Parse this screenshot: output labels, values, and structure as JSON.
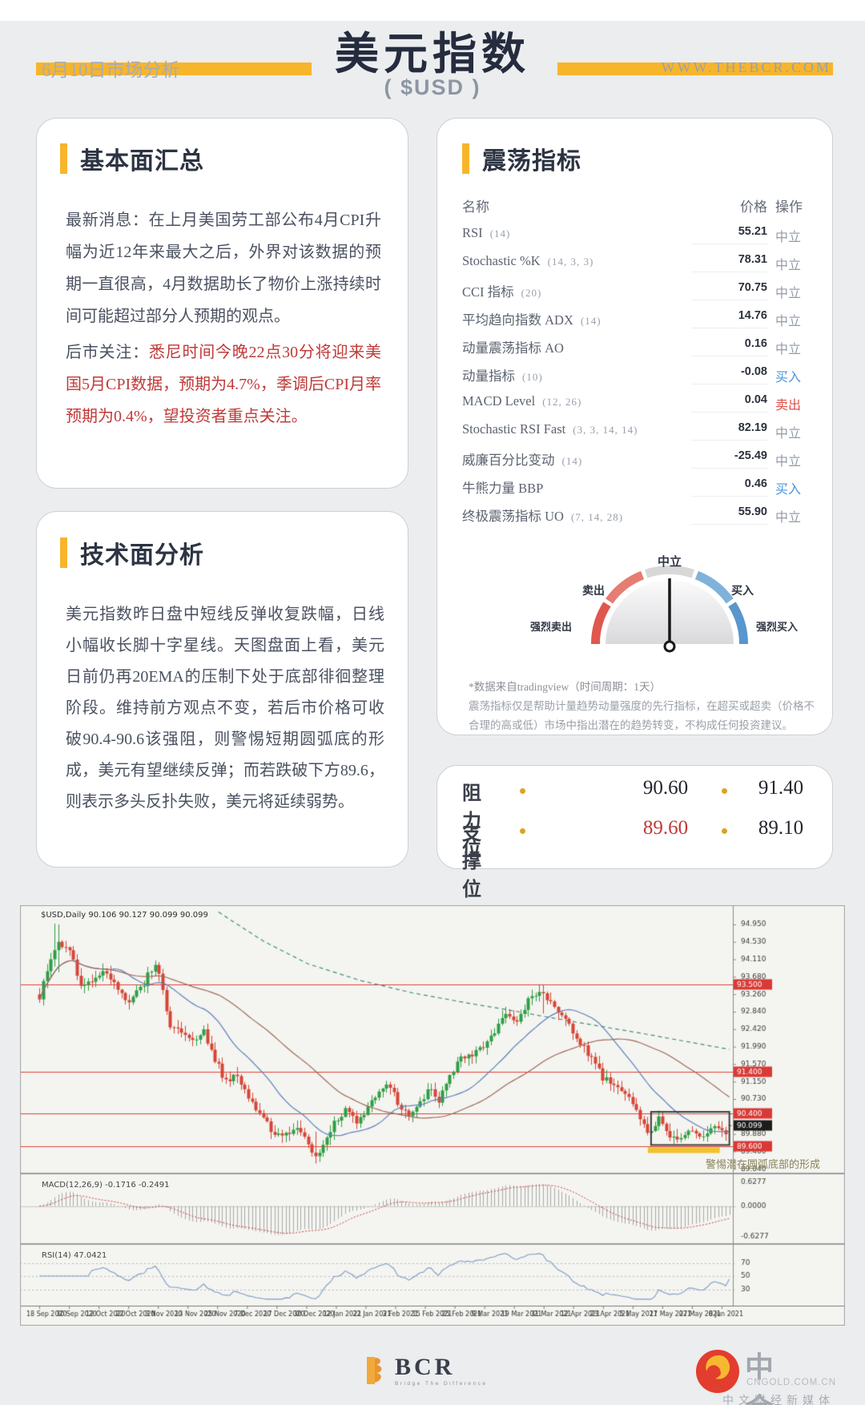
{
  "header": {
    "date_label": "6月10日市场分析",
    "title": "美元指数",
    "subtitle": "( $USD )",
    "website": "WWW.THEBCR.COM",
    "accent_color": "#F7B52C"
  },
  "fundamental_card": {
    "title": "基本面汇总",
    "latest_label": "最新消息：",
    "latest_text": "在上月美国劳工部公布4月CPI升幅为近12年来最大之后，外界对该数据的预期一直很高，4月数据助长了物价上涨持续时间可能超过部分人预期的观点。",
    "watch_label": "后市关注：",
    "watch_text": "悉尼时间今晚22点30分将迎来美国5月CPI数据，预期为4.7%，季调后CPI月率预期为0.4%，望投资者重点关注。"
  },
  "oscillator_card": {
    "title": "震荡指标",
    "columns": {
      "name": "名称",
      "price": "价格",
      "action": "操作"
    },
    "rows": [
      {
        "name": "RSI",
        "param": "(14)",
        "price": "55.21",
        "action": "中立",
        "action_type": "neutral"
      },
      {
        "name": "Stochastic %K",
        "param": "(14, 3, 3)",
        "price": "78.31",
        "action": "中立",
        "action_type": "neutral"
      },
      {
        "name": "CCI 指标",
        "param": "(20)",
        "price": "70.75",
        "action": "中立",
        "action_type": "neutral"
      },
      {
        "name": "平均趋向指数 ADX",
        "param": "(14)",
        "price": "14.76",
        "action": "中立",
        "action_type": "neutral"
      },
      {
        "name": "动量震荡指标 AO",
        "param": "",
        "price": "0.16",
        "action": "中立",
        "action_type": "neutral"
      },
      {
        "name": "动量指标",
        "param": "(10)",
        "price": "-0.08",
        "action": "买入",
        "action_type": "buy"
      },
      {
        "name": "MACD Level",
        "param": "(12, 26)",
        "price": "0.04",
        "action": "卖出",
        "action_type": "sell"
      },
      {
        "name": "Stochastic RSI Fast",
        "param": "(3, 3, 14, 14)",
        "price": "82.19",
        "action": "中立",
        "action_type": "neutral"
      },
      {
        "name": "威廉百分比变动",
        "param": "(14)",
        "price": "-25.49",
        "action": "中立",
        "action_type": "neutral"
      },
      {
        "name": "牛熊力量 BBP",
        "param": "",
        "price": "0.46",
        "action": "买入",
        "action_type": "buy"
      },
      {
        "name": "终极震荡指标 UO",
        "param": "(7, 14, 28)",
        "price": "55.90",
        "action": "中立",
        "action_type": "neutral"
      }
    ],
    "gauge": {
      "labels": {
        "neutral": "中立",
        "sell": "卖出",
        "buy": "买入",
        "strong_sell": "强烈卖出",
        "strong_buy": "强烈买入"
      },
      "colors": {
        "strong_sell": "#e0574e",
        "sell": "#e57d72",
        "neutral": "#d8d8d8",
        "buy": "#7fb2da",
        "strong_buy": "#5996cc"
      },
      "needle_position": "neutral"
    },
    "footnote1": "*数据来自tradingview（时间周期：1天）",
    "footnote2": "震荡指标仅是帮助计量趋势动量强度的先行指标，在超买或超卖（价格不合理的高或低）市场中指出潜在的趋势转变，不构成任何投资建议。"
  },
  "technical_card": {
    "title": "技术面分析",
    "text": "美元指数昨日盘中短线反弹收复跌幅，日线小幅收长脚十字星线。天图盘面上看，美元日前仍再20EMA的压制下处于底部徘徊整理阶段。维持前方观点不变，若后市价格可收破90.4-90.6该强阻，则警惕短期圆弧底的形成，美元有望继续反弹；而若跌破下方89.6，则表示多头反扑失败，美元将延续弱势。"
  },
  "levels_card": {
    "resistance_label": "阻力位",
    "resistance": [
      "90.60",
      "91.40"
    ],
    "support_label": "支撑位",
    "support": [
      "89.60",
      "89.10"
    ],
    "support_highlight_index": 0
  },
  "chart_data": {
    "type": "candlestick",
    "symbol_line": "$USD,Daily  90.106 90.127 90.099 90.099",
    "panes": {
      "macd_label": "MACD(12,26,9) -0.1716 -0.2491",
      "rsi_label": "RSI(14) 47.0421"
    },
    "annotation": {
      "text": "警惕潜在圆弧底部的形成"
    },
    "price_scale": [
      "94.950",
      "94.530",
      "94.110",
      "93.680",
      "93.260",
      "92.840",
      "92.420",
      "91.990",
      "91.570",
      "91.150",
      "90.730",
      "90.310",
      "89.880",
      "89.460",
      "89.040"
    ],
    "macd_scale": [
      "0.6277",
      "0.0000",
      "-0.6277"
    ],
    "rsi_scale": [
      "70",
      "50",
      "30"
    ],
    "rsi_levels": [
      70,
      50,
      30
    ],
    "hlines": [
      {
        "price": 93.5,
        "label": "93.500"
      },
      {
        "price": 91.4,
        "label": "91.400"
      },
      {
        "price": 90.4,
        "label": "90.400"
      },
      {
        "price": 89.6,
        "label": "89.600"
      }
    ],
    "price_badge": {
      "price": 90.099,
      "label": "90.099"
    },
    "dates": [
      "18 Sep 2020",
      "30 Sep 2020",
      "12 Oct 2020",
      "22 Oct 2020",
      "3 Nov 2020",
      "13 Nov 2020",
      "25 Nov 2020",
      "7 Dec 2020",
      "17 Dec 2020",
      "30 Dec 2020",
      "12 Jan 2021",
      "22 Jan 2021",
      "3 Feb 2021",
      "15 Feb 2021",
      "25 Feb 2021",
      "9 Mar 2021",
      "19 Mar 2021",
      "31 Mar 2021",
      "12 Apr 2021",
      "23 Apr 2021",
      "5 May 2021",
      "17 May 2021",
      "27 May 2021",
      "8 Jun 2021"
    ],
    "n_candles": 186,
    "price_range": [
      89.0,
      95.3
    ],
    "close_keypoints": [
      [
        0,
        93.1
      ],
      [
        2,
        93.9
      ],
      [
        5,
        94.55
      ],
      [
        8,
        94.35
      ],
      [
        11,
        93.5
      ],
      [
        14,
        93.65
      ],
      [
        17,
        93.85
      ],
      [
        21,
        93.4
      ],
      [
        24,
        93.1
      ],
      [
        28,
        93.55
      ],
      [
        31,
        94.05
      ],
      [
        33,
        93.35
      ],
      [
        35,
        92.45
      ],
      [
        38,
        92.35
      ],
      [
        41,
        92.1
      ],
      [
        44,
        92.35
      ],
      [
        47,
        91.7
      ],
      [
        50,
        91.15
      ],
      [
        53,
        91.3
      ],
      [
        56,
        90.75
      ],
      [
        59,
        90.45
      ],
      [
        62,
        90.0
      ],
      [
        65,
        89.8
      ],
      [
        68,
        90.05
      ],
      [
        71,
        89.85
      ],
      [
        74,
        89.3
      ],
      [
        76,
        89.6
      ],
      [
        79,
        90.15
      ],
      [
        82,
        90.45
      ],
      [
        85,
        90.2
      ],
      [
        88,
        90.55
      ],
      [
        91,
        90.95
      ],
      [
        94,
        91.05
      ],
      [
        96,
        90.6
      ],
      [
        99,
        90.35
      ],
      [
        102,
        90.7
      ],
      [
        105,
        91.0
      ],
      [
        107,
        90.65
      ],
      [
        110,
        91.3
      ],
      [
        113,
        91.7
      ],
      [
        116,
        91.85
      ],
      [
        119,
        92.0
      ],
      [
        122,
        92.35
      ],
      [
        125,
        92.8
      ],
      [
        128,
        92.65
      ],
      [
        131,
        93.1
      ],
      [
        134,
        93.4
      ],
      [
        136,
        93.2
      ],
      [
        139,
        92.8
      ],
      [
        142,
        92.55
      ],
      [
        145,
        92.1
      ],
      [
        148,
        91.7
      ],
      [
        151,
        91.25
      ],
      [
        154,
        91.05
      ],
      [
        157,
        90.9
      ],
      [
        160,
        90.4
      ],
      [
        163,
        89.95
      ],
      [
        166,
        90.25
      ],
      [
        169,
        89.85
      ],
      [
        172,
        89.8
      ],
      [
        175,
        90.05
      ],
      [
        178,
        89.75
      ],
      [
        181,
        90.1
      ],
      [
        184,
        89.95
      ],
      [
        185,
        90.1
      ]
    ],
    "teal_ma_keypoints": [
      [
        48,
        95.25
      ],
      [
        60,
        94.55
      ],
      [
        72,
        94.0
      ],
      [
        86,
        93.6
      ],
      [
        100,
        93.3
      ],
      [
        115,
        93.05
      ],
      [
        125,
        92.9
      ],
      [
        136,
        92.72
      ],
      [
        150,
        92.5
      ],
      [
        163,
        92.3
      ],
      [
        172,
        92.15
      ],
      [
        186,
        91.92
      ]
    ],
    "wick_spikes": [
      [
        4,
        94.97,
        94.1
      ],
      [
        5,
        94.95,
        93.8
      ],
      [
        74,
        89.95,
        89.21
      ],
      [
        135,
        93.5,
        92.8
      ]
    ],
    "last_candle": {
      "o": 90.106,
      "h": 90.127,
      "l": 90.099,
      "c": 90.099
    },
    "box": {
      "day_start": 164.5,
      "day_end": 185.5,
      "price_top": 90.43,
      "price_bottom": 89.63
    },
    "colors": {
      "up": "#2f9e44",
      "down": "#d64537",
      "ma_fast": "#5f7fbf",
      "ma_slow": "#a06a5a",
      "ma_long": "#3f8f7c",
      "hline": "#e04038",
      "badge_red": "#d93a36",
      "badge_dark": "#1c1c1c",
      "macd_bar": "#a8a8a8",
      "macd_signal": "#cc4444",
      "rsi": "#7b9cc4",
      "box": "#3f3f3f",
      "highlight": "#f2c12e",
      "bg": "#f4f4f0",
      "border": "#a3a3a3"
    }
  },
  "footer": {
    "bcr_name": "BCR",
    "bcr_tagline": "Bridge The Difference",
    "cngold_name": "中金网",
    "cngold_domain": "CNGOLD.COM.CN",
    "cngold_tagline": "中文财经新媒体"
  }
}
